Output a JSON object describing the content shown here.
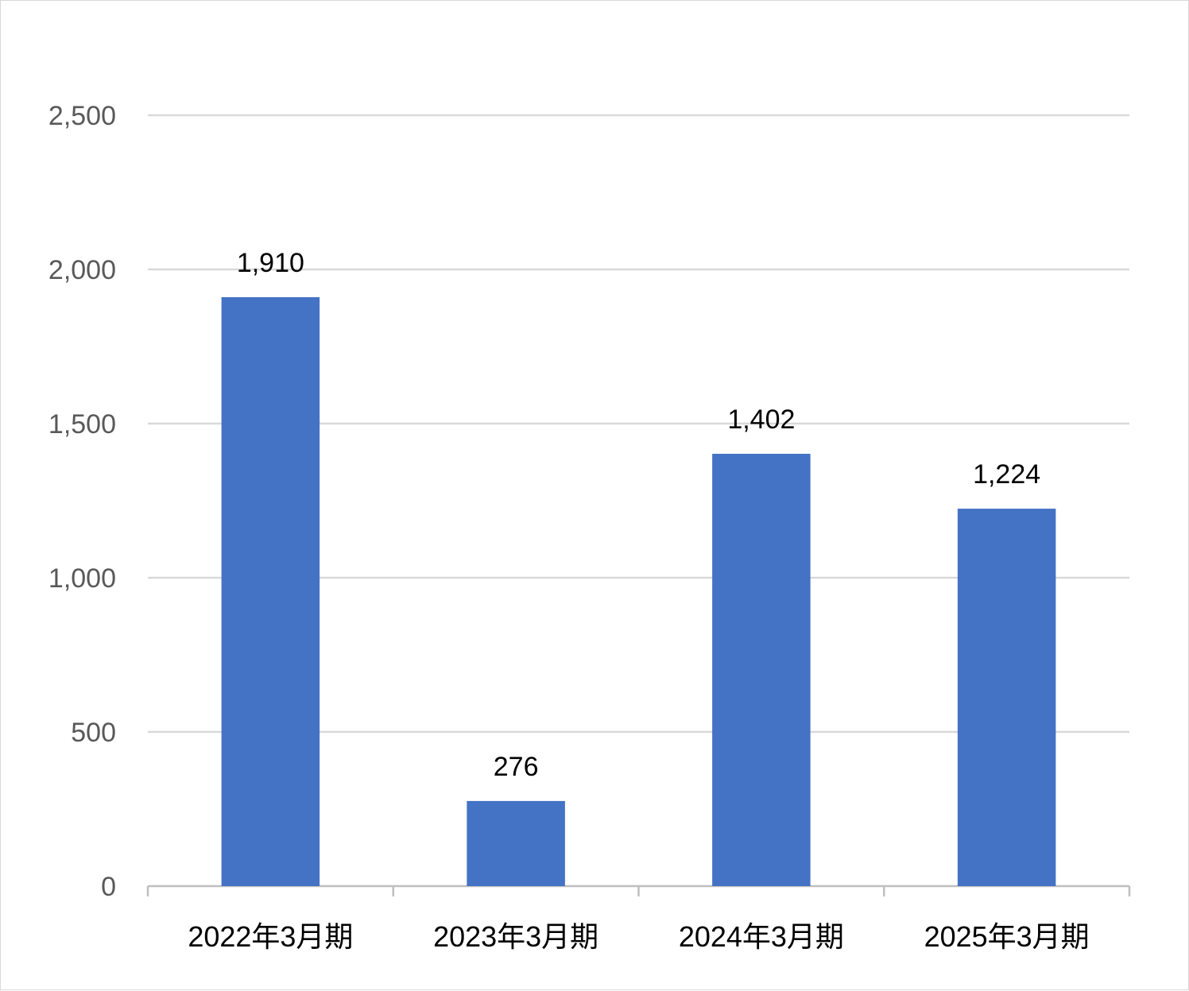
{
  "chart_data": {
    "type": "bar",
    "categories": [
      "2022年3月期",
      "2023年3月期",
      "2024年3月期",
      "2025年3月期"
    ],
    "values": [
      1910,
      276,
      1402,
      1224
    ],
    "data_labels": [
      "1,910",
      "276",
      "1,402",
      "1,224"
    ],
    "y_ticks": [
      0,
      500,
      1000,
      1500,
      2000,
      2500
    ],
    "y_tick_labels": [
      "0",
      "500",
      "1,000",
      "1,500",
      "2,000",
      "2,500"
    ],
    "ylim": [
      0,
      2500
    ],
    "title": "",
    "xlabel": "",
    "ylabel": "",
    "grid": true,
    "legend": "none",
    "colors": {
      "bar": "#4472C4",
      "grid": "#d9d9d9",
      "axis": "#bfbfbf"
    }
  }
}
